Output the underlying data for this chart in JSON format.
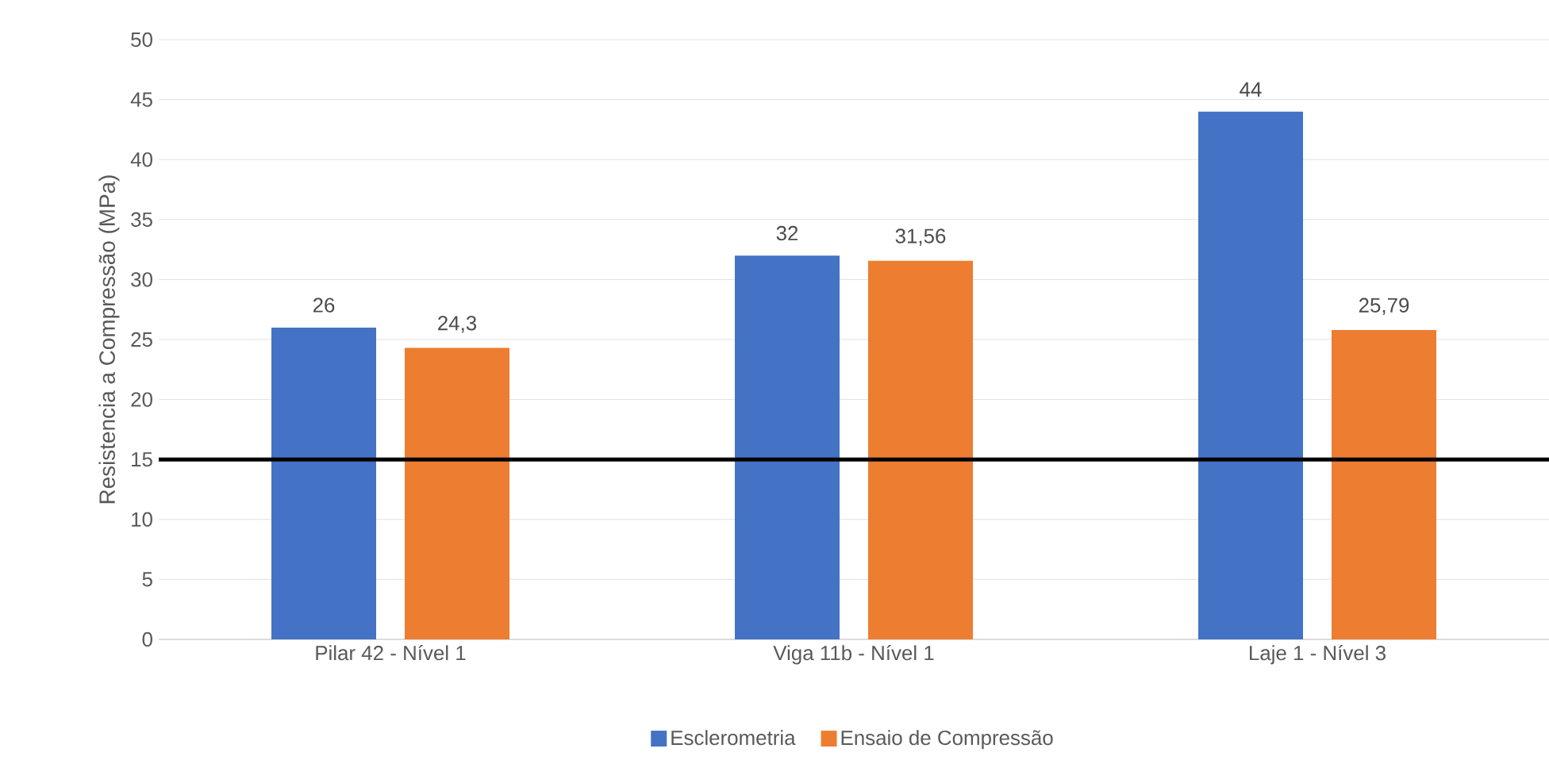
{
  "chart_data": {
    "type": "bar",
    "ylabel": "Resistencia a Compressão (MPa)",
    "categories": [
      "Pilar 42 - Nível 1",
      "Viga 11b - Nível 1",
      "Laje 1 - Nível 3"
    ],
    "series": [
      {
        "name": "Esclerometria",
        "color": "#4472c4",
        "values": [
          26,
          32,
          44
        ],
        "value_labels": [
          "26",
          "32",
          "44"
        ]
      },
      {
        "name": "Ensaio de Compressão",
        "color": "#ed7d31",
        "values": [
          24.3,
          31.56,
          25.79
        ],
        "value_labels": [
          "24,3",
          "31,56",
          "25,79"
        ]
      }
    ],
    "ylim": [
      0,
      50
    ],
    "yticks": [
      0,
      5,
      10,
      15,
      20,
      25,
      30,
      35,
      40,
      45,
      50
    ],
    "grid": "y",
    "legend": "bottom",
    "ref_lines": [
      {
        "axis": "y",
        "value": 15,
        "color": "#000000"
      }
    ]
  }
}
